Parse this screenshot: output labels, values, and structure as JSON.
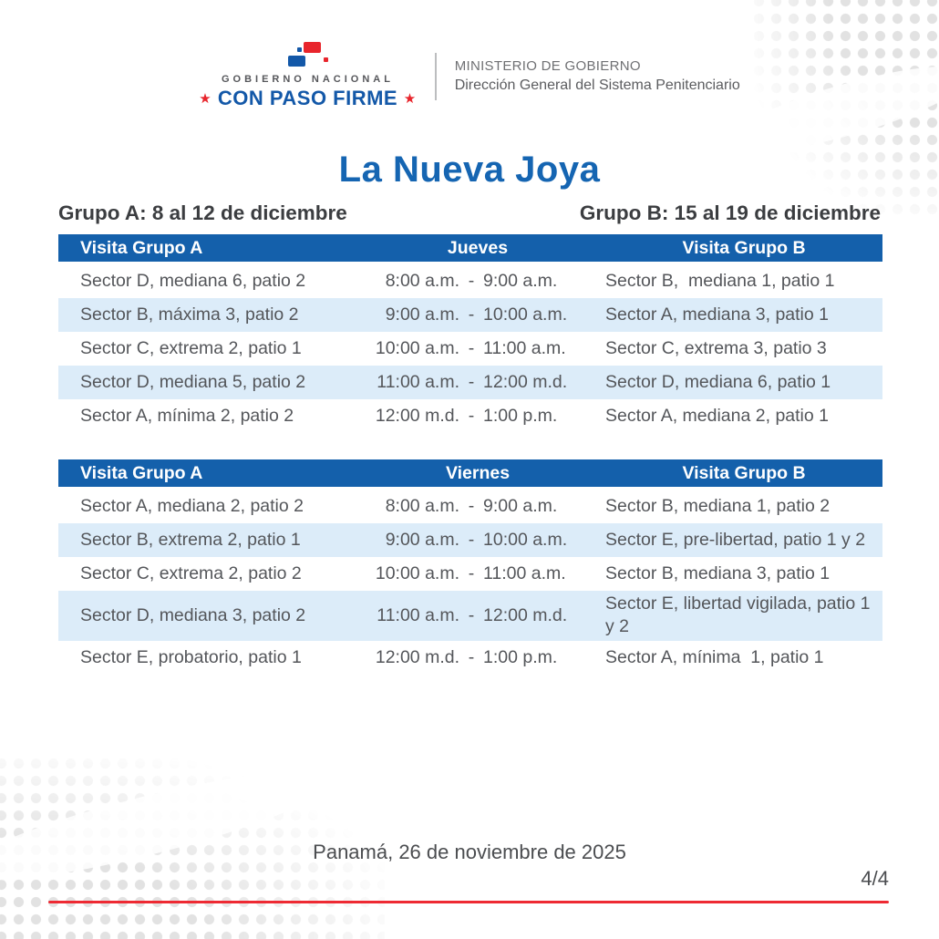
{
  "header": {
    "logo": {
      "top_text": "GOBIERNO NACIONAL",
      "bottom_text": "CON PASO FIRME",
      "star": "★"
    },
    "ministry": {
      "line1": "MINISTERIO DE GOBIERNO",
      "line2": "Dirección General del Sistema Penitenciario"
    }
  },
  "title": "La Nueva Joya",
  "groups": {
    "a": "Grupo A: 8 al 12 de diciembre",
    "b": "Grupo B: 15 al 19 de diciembre"
  },
  "tables": [
    {
      "col_a_header": "Visita Grupo A",
      "day_header": "Jueves",
      "col_b_header": "Visita Grupo B",
      "rows": [
        {
          "a": "Sector D, mediana 6, patio 2",
          "start": "8:00 a.m.",
          "sep": "-",
          "end": "9:00 a.m.",
          "b": "Sector B,  mediana 1, patio 1"
        },
        {
          "a": "Sector B, máxima 3, patio 2",
          "start": "9:00 a.m.",
          "sep": "-",
          "end": "10:00 a.m.",
          "b": "Sector A, mediana 3, patio 1"
        },
        {
          "a": "Sector C, extrema 2, patio 1",
          "start": "10:00 a.m.",
          "sep": "-",
          "end": "11:00 a.m.",
          "b": "Sector C, extrema 3, patio 3"
        },
        {
          "a": "Sector D, mediana 5, patio 2",
          "start": "11:00 a.m.",
          "sep": "-",
          "end": "12:00 m.d.",
          "b": "Sector D, mediana 6, patio 1"
        },
        {
          "a": "Sector A, mínima 2, patio 2",
          "start": "12:00 m.d.",
          "sep": "-",
          "end": "1:00 p.m.",
          "b": "Sector A, mediana 2, patio 1"
        }
      ]
    },
    {
      "col_a_header": "Visita Grupo A",
      "day_header": "Viernes",
      "col_b_header": "Visita Grupo B",
      "rows": [
        {
          "a": "Sector A, mediana 2, patio 2",
          "start": "8:00 a.m.",
          "sep": "-",
          "end": "9:00 a.m.",
          "b": "Sector B, mediana 1, patio 2"
        },
        {
          "a": "Sector B, extrema 2, patio 1",
          "start": "9:00 a.m.",
          "sep": "-",
          "end": "10:00 a.m.",
          "b": "Sector E, pre-libertad, patio 1 y 2"
        },
        {
          "a": "Sector C, extrema 2, patio 2",
          "start": "10:00 a.m.",
          "sep": "-",
          "end": "11:00 a.m.",
          "b": "Sector B, mediana 3, patio 1"
        },
        {
          "a": "Sector D, mediana 3, patio 2",
          "start": "11:00 a.m.",
          "sep": "-",
          "end": "12:00 m.d.",
          "b": "Sector E, libertad vigilada, patio 1 y 2"
        },
        {
          "a": "Sector E, probatorio, patio 1",
          "start": "12:00 m.d.",
          "sep": "-",
          "end": "1:00 p.m.",
          "b": "Sector A, mínima  1, patio 1"
        }
      ]
    }
  ],
  "footer": {
    "date_line": "Panamá, 26 de noviembre de 2025",
    "page_number": "4/4"
  },
  "colors": {
    "table_header_blue": "#1460ab",
    "row_alt_blue": "#dcecf9",
    "title_blue": "#1565b2",
    "logo_blue": "#1358a8",
    "logo_red": "#e8252c",
    "red_line": "#ee2a33",
    "body_text": "#54565a",
    "heading_text": "#3b3d40"
  }
}
